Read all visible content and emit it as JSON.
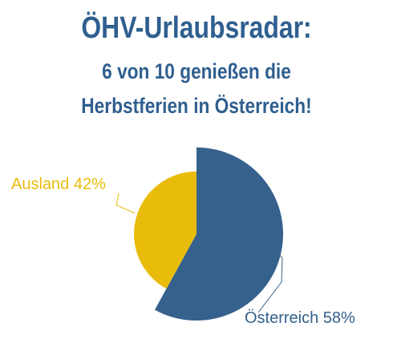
{
  "header": {
    "title_line1": "ÖHV-Urlaubsradar:",
    "title_line2": "6 von 10 genießen die",
    "title_line3": "Herbstferien in Österreich!"
  },
  "colors": {
    "title": "#2f5f8f",
    "oesterreich": "#35618c",
    "ausland": "#e9bc0c"
  },
  "chart_data": {
    "type": "pie",
    "title": "ÖHV-Urlaubsradar: 6 von 10 genießen die Herbstferien in Österreich!",
    "slices": [
      {
        "label": "Österreich 58%",
        "name": "Österreich",
        "value": 58,
        "color": "#35618c"
      },
      {
        "label": "Ausland 42%",
        "name": "Ausland",
        "value": 42,
        "color": "#e9bc0c"
      }
    ],
    "start_angle_deg": 0,
    "direction": "clockwise",
    "legend": "none"
  }
}
